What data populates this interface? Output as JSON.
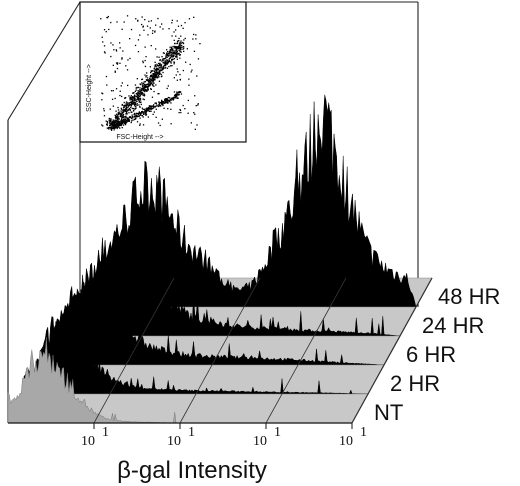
{
  "chart_data": [
    {
      "type": "area",
      "subtype": "3d-stacked-flow-cytometry-histograms",
      "xlabel": "β-gal Intensity",
      "xscale": "log",
      "xlim": [
        1,
        10000
      ],
      "x_ticks": [
        {
          "label": "10",
          "exp": "1",
          "value": 10
        },
        {
          "label": "10",
          "exp": "1",
          "value": 100
        },
        {
          "label": "10",
          "exp": "1",
          "value": 1000
        },
        {
          "label": "10",
          "exp": "1",
          "value": 10000
        }
      ],
      "ylabel": "",
      "grid": true,
      "series_colors": {
        "NT": "#a8a8a8",
        "2 HR": "#000000",
        "6 HR": "#000000",
        "24 HR": "#000000",
        "48 HR": "#000000"
      },
      "series": [
        {
          "name": "NT",
          "points": [
            [
              1.3,
              0.25
            ],
            [
              1.6,
              0.45
            ],
            [
              2,
              0.62
            ],
            [
              2.5,
              0.7
            ],
            [
              3,
              0.66
            ],
            [
              4,
              0.52
            ],
            [
              5,
              0.4
            ],
            [
              6.5,
              0.28
            ],
            [
              8,
              0.18
            ],
            [
              10,
              0.1
            ],
            [
              13,
              0.05
            ],
            [
              16,
              0.03
            ],
            [
              20,
              0.02
            ],
            [
              30,
              0.01
            ],
            [
              100,
              0
            ],
            [
              10000,
              0
            ]
          ]
        },
        {
          "name": "2 HR",
          "points": [
            [
              1.3,
              0.18
            ],
            [
              1.6,
              0.35
            ],
            [
              2,
              0.52
            ],
            [
              2.5,
              0.6
            ],
            [
              3,
              0.58
            ],
            [
              4,
              0.48
            ],
            [
              5,
              0.38
            ],
            [
              6.5,
              0.3
            ],
            [
              8,
              0.22
            ],
            [
              10,
              0.15
            ],
            [
              13,
              0.1
            ],
            [
              20,
              0.06
            ],
            [
              40,
              0.04
            ],
            [
              80,
              0.03
            ],
            [
              200,
              0.025
            ],
            [
              500,
              0.02
            ],
            [
              1000,
              0.015
            ],
            [
              3000,
              0.01
            ],
            [
              10000,
              0
            ]
          ]
        },
        {
          "name": "6 HR",
          "points": [
            [
              1.3,
              0.15
            ],
            [
              1.6,
              0.3
            ],
            [
              2,
              0.45
            ],
            [
              2.5,
              0.55
            ],
            [
              3,
              0.56
            ],
            [
              4,
              0.5
            ],
            [
              5,
              0.45
            ],
            [
              6.5,
              0.4
            ],
            [
              8,
              0.35
            ],
            [
              10,
              0.3
            ],
            [
              13,
              0.22
            ],
            [
              20,
              0.14
            ],
            [
              40,
              0.09
            ],
            [
              80,
              0.07
            ],
            [
              200,
              0.06
            ],
            [
              500,
              0.05
            ],
            [
              1000,
              0.04
            ],
            [
              3000,
              0.02
            ],
            [
              10000,
              0
            ]
          ]
        },
        {
          "name": "24 HR",
          "points": [
            [
              1.3,
              0.1
            ],
            [
              1.6,
              0.2
            ],
            [
              2,
              0.3
            ],
            [
              2.5,
              0.4
            ],
            [
              3,
              0.45
            ],
            [
              4,
              0.5
            ],
            [
              5,
              0.52
            ],
            [
              6.5,
              0.5
            ],
            [
              8,
              0.45
            ],
            [
              10,
              0.4
            ],
            [
              13,
              0.32
            ],
            [
              20,
              0.22
            ],
            [
              40,
              0.12
            ],
            [
              80,
              0.08
            ],
            [
              150,
              0.06
            ],
            [
              300,
              0.05
            ],
            [
              600,
              0.04
            ],
            [
              1500,
              0.03
            ],
            [
              4000,
              0.02
            ],
            [
              10000,
              0
            ]
          ]
        },
        {
          "name": "48 HR",
          "points": [
            [
              1.3,
              0.06
            ],
            [
              1.6,
              0.12
            ],
            [
              2,
              0.2
            ],
            [
              2.5,
              0.28
            ],
            [
              3,
              0.34
            ],
            [
              4,
              0.42
            ],
            [
              5,
              0.5
            ],
            [
              6.5,
              0.58
            ],
            [
              8,
              0.62
            ],
            [
              10,
              0.58
            ],
            [
              13,
              0.48
            ],
            [
              16,
              0.4
            ],
            [
              20,
              0.33
            ],
            [
              30,
              0.25
            ],
            [
              40,
              0.2
            ],
            [
              60,
              0.12
            ],
            [
              80,
              0.08
            ],
            [
              120,
              0.1
            ],
            [
              160,
              0.18
            ],
            [
              220,
              0.3
            ],
            [
              300,
              0.42
            ],
            [
              400,
              0.55
            ],
            [
              500,
              0.68
            ],
            [
              600,
              0.78
            ],
            [
              700,
              0.9
            ],
            [
              800,
              0.96
            ],
            [
              900,
              0.92
            ],
            [
              1000,
              0.86
            ],
            [
              1200,
              0.74
            ],
            [
              1500,
              0.6
            ],
            [
              2000,
              0.44
            ],
            [
              2500,
              0.32
            ],
            [
              3000,
              0.26
            ],
            [
              4000,
              0.2
            ],
            [
              6000,
              0.16
            ],
            [
              8000,
              0.14
            ],
            [
              10000,
              0
            ]
          ]
        }
      ]
    },
    {
      "type": "scatter",
      "role": "inset",
      "xlabel": "FSC-Height -->",
      "ylabel": "SSC-Height -->"
    }
  ]
}
